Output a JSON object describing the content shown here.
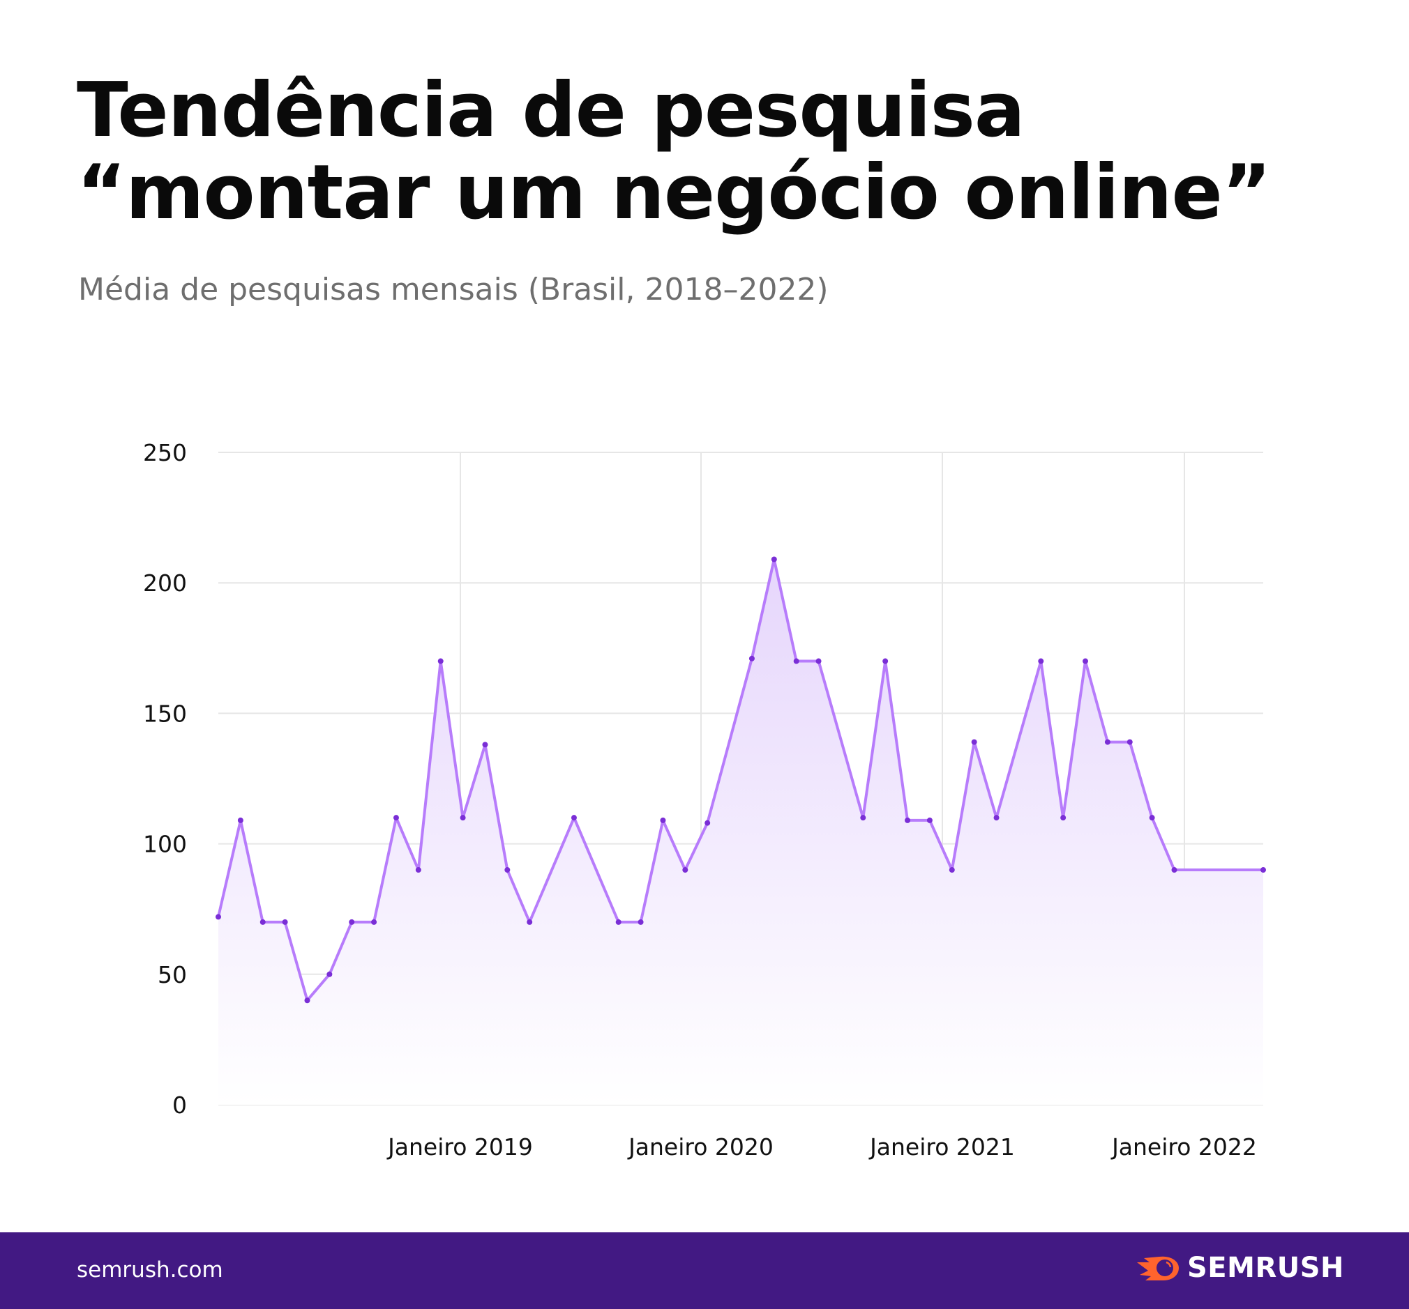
{
  "header": {
    "title_line1": "Tendência de pesquisa",
    "title_line2": "“montar um negócio online”",
    "subtitle": "Média de pesquisas mensais (Brasil, 2018–2022)"
  },
  "footer": {
    "site": "semrush.com",
    "brand": "SEMRUSH",
    "background_color": "#421983",
    "logo_color": "#ff642d"
  },
  "chart_data": {
    "type": "area",
    "title": "",
    "xlabel": "",
    "ylabel": "",
    "ylim": [
      0,
      250
    ],
    "y_ticks": [
      0,
      50,
      100,
      150,
      200,
      250
    ],
    "x_tick_labels": [
      "Janeiro 2019",
      "Janeiro 2020",
      "Janeiro 2021",
      "Janeiro 2022"
    ],
    "grid": true,
    "line_color": "#b77cfb",
    "marker_color": "#7a2ed6",
    "fill_color": "#e6d6fc",
    "x": [
      "2018-02",
      "2018-03",
      "2018-04",
      "2018-05",
      "2018-06",
      "2018-07",
      "2018-08",
      "2018-09",
      "2018-10",
      "2018-11",
      "2018-12",
      "2019-01",
      "2019-02",
      "2019-03",
      "2019-04",
      "2019-05",
      "2019-06",
      "2019-07",
      "2019-08",
      "2019-09",
      "2019-10",
      "2019-11",
      "2019-12",
      "2020-01",
      "2020-02",
      "2020-03",
      "2020-04",
      "2020-05",
      "2020-06",
      "2020-07",
      "2020-08",
      "2020-09",
      "2020-10",
      "2020-11",
      "2020-12",
      "2021-01",
      "2021-02",
      "2021-03",
      "2021-04",
      "2021-05",
      "2021-06",
      "2021-07",
      "2021-08",
      "2021-09",
      "2021-10",
      "2021-11",
      "2021-12",
      "2022-01"
    ],
    "values": [
      72,
      109,
      70,
      70,
      40,
      50,
      70,
      70,
      110,
      90,
      170,
      110,
      138,
      90,
      70,
      null,
      110,
      null,
      70,
      70,
      109,
      90,
      108,
      null,
      171,
      209,
      170,
      170,
      null,
      110,
      170,
      109,
      109,
      90,
      139,
      110,
      null,
      170,
      110,
      170,
      139,
      139,
      110,
      90,
      null,
      null,
      null,
      90
    ]
  }
}
